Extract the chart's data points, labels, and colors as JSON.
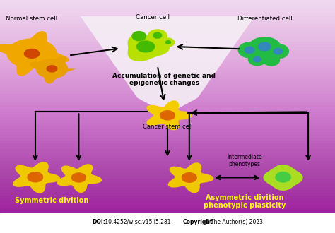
{
  "labels": {
    "normal_stem_cell": "Normal stem cell",
    "cancer_cell": "Cancer cell",
    "differentiated_cell": "Differentiated cell",
    "accumulation": "Accumulation of genetic and\nepigenetic changes",
    "cancer_stem_cell": "Cancer stem cell",
    "symmetric": "Symmetric divition",
    "asymmetric": "Asymmetric divition\nphenotypic plasticity",
    "intermediate": "Intermediate\nphenotypes",
    "doi_bold": "DOI:",
    "doi_normal": " 10.4252/wjsc.v15.i5.281 ",
    "doi_bold2": "Copyright",
    "doi_normal2": " ©The Author(s) 2023."
  },
  "cell_colors": {
    "normal_outer": "#f0a800",
    "normal_inner": "#d04800",
    "normal_outer2": "#e8a000",
    "cancer_outer": "#b8e000",
    "cancer_inner": "#44bb00",
    "cancer_inner2": "#88cc00",
    "differentiated_outer": "#22bb44",
    "differentiated_inner": "#3388bb",
    "stem_outer": "#f5cc00",
    "stem_inner": "#dd6600",
    "sym_outer": "#f0c800",
    "sym_inner": "#dd6600",
    "asym_outer": "#f0c800",
    "asym_inner": "#dd6600",
    "asym_green_outer": "#aadd22",
    "asym_green_inner": "#44cc44"
  },
  "bg_colors": [
    "#f0d8f0",
    "#e0aadd",
    "#cc77cc",
    "#aa44aa",
    "#991199"
  ],
  "white_tri_color": "#f5eef5",
  "figsize": [
    4.74,
    3.3
  ],
  "dpi": 100
}
